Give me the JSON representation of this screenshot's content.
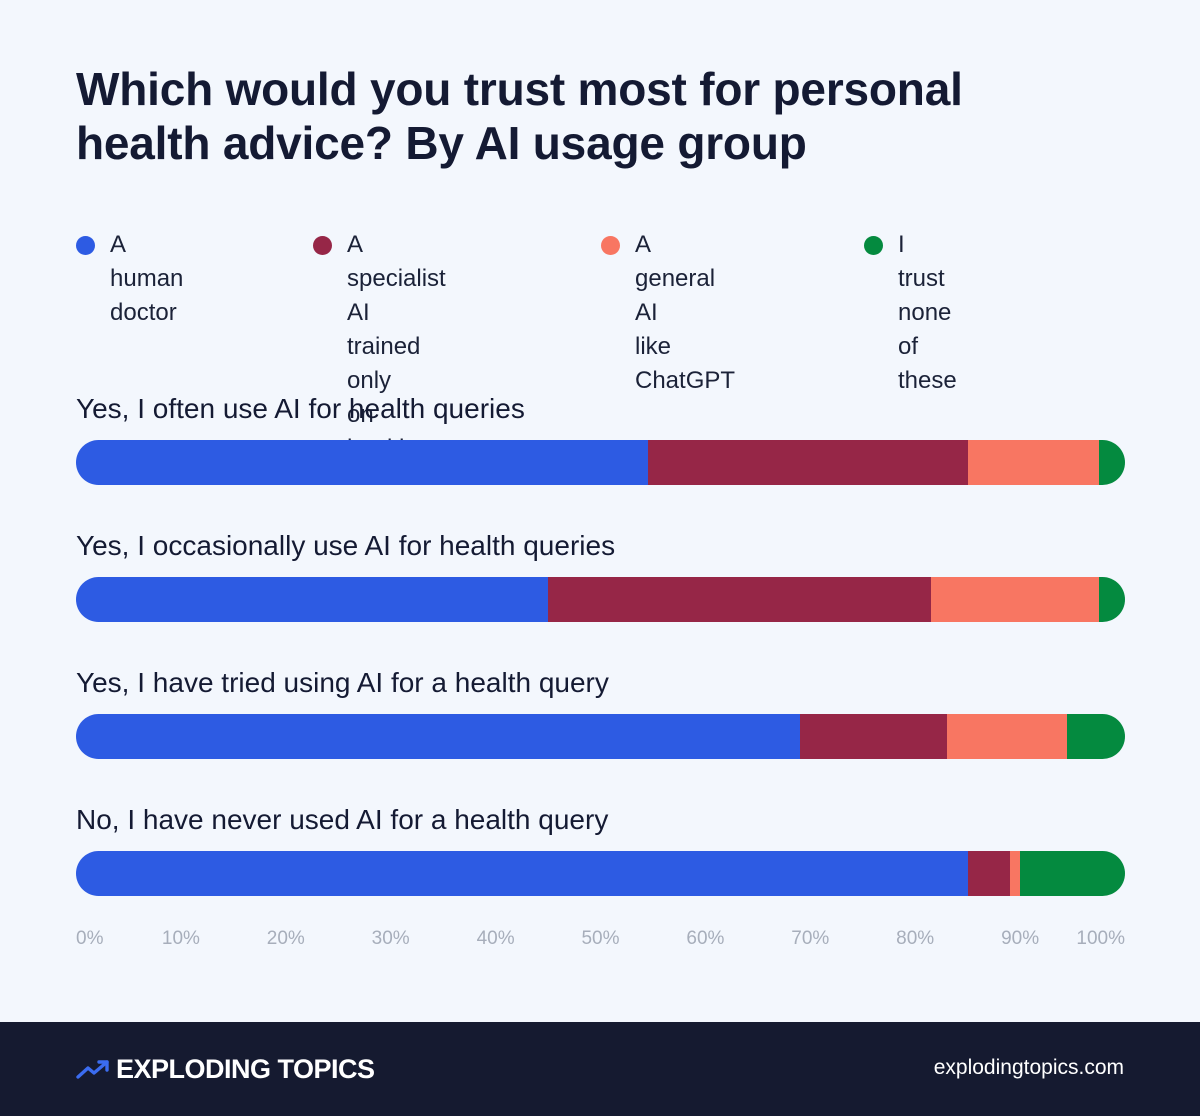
{
  "colors": {
    "background": "#f3f7fd",
    "footer": "#151a30",
    "axis_text": "#a7aebb"
  },
  "chart_data": {
    "type": "bar",
    "orientation": "horizontal",
    "stacked": true,
    "title": "Which would you trust most for personal health advice? By AI usage group",
    "categories": [
      "Yes, I often use AI for health queries",
      "Yes, I occasionally use AI for health queries",
      "Yes, I have tried using AI for a health query",
      "No, I have never used AI for a health query"
    ],
    "series": [
      {
        "name": "A human doctor",
        "color": "#2d5be3",
        "values": [
          54.5,
          45,
          69,
          85
        ]
      },
      {
        "name": "A specialist AI trained only on health",
        "color": "#962647",
        "values": [
          30.5,
          36.5,
          14,
          4
        ]
      },
      {
        "name": "A general AI like ChatGPT",
        "color": "#f87662",
        "values": [
          12.5,
          16,
          11.5,
          1
        ]
      },
      {
        "name": "I trust none of these",
        "color": "#048a3f",
        "values": [
          2.5,
          2.5,
          5.5,
          10
        ]
      }
    ],
    "xlim": [
      0,
      100
    ],
    "xticks": [
      "0%",
      "10%",
      "20%",
      "30%",
      "40%",
      "50%",
      "60%",
      "70%",
      "80%",
      "90%",
      "100%"
    ],
    "legend_placement": "top",
    "grid": false
  },
  "legend": [
    {
      "lines": [
        "A human",
        "doctor"
      ],
      "icon": "circle-dot-icon"
    },
    {
      "lines": [
        "A specialist AI",
        "trained only",
        "on health"
      ],
      "icon": "circle-dot-icon"
    },
    {
      "lines": [
        "A general AI",
        "like ChatGPT"
      ],
      "icon": "circle-dot-icon"
    },
    {
      "lines": [
        "I trust none",
        "of these"
      ],
      "icon": "circle-dot-icon"
    }
  ],
  "footer": {
    "brand": "EXPLODING TOPICS",
    "brand_icon": "trend-arrow-icon",
    "site": "explodingtopics.com"
  }
}
